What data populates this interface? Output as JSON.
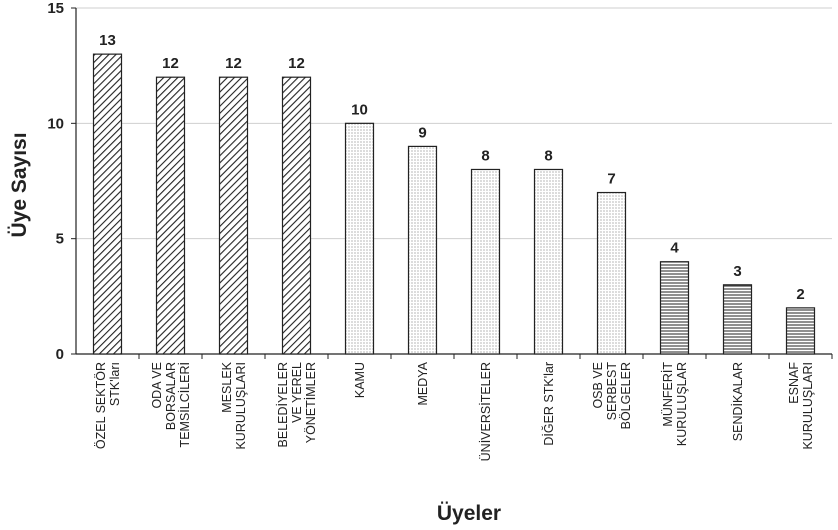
{
  "chart_data": {
    "type": "bar",
    "title": "",
    "xlabel": "Üyeler",
    "ylabel": "Üye Sayısı",
    "ylim": [
      0,
      15
    ],
    "yticks": [
      0,
      5,
      10,
      15
    ],
    "grid": true,
    "categories": [
      [
        "ÖZEL SEKTÖR",
        "STK'ları"
      ],
      [
        "ODA VE",
        "BORSALAR",
        "TEMSİLCİLERİ"
      ],
      [
        "MESLEK",
        "KURULUŞLARI"
      ],
      [
        "BELEDİYELER",
        "VE YEREL",
        "YÖNETİMLER"
      ],
      [
        "KAMU"
      ],
      [
        "MEDYA"
      ],
      [
        "ÜNİVERSİTELER"
      ],
      [
        "DİĞER STK'lar"
      ],
      [
        "OSB VE",
        "SERBEST",
        "BÖLGELER"
      ],
      [
        "MÜNFERİT",
        "KURULUŞLAR"
      ],
      [
        "SENDİKALAR"
      ],
      [
        "ESNAF",
        "KURULUŞLARI"
      ]
    ],
    "values": [
      13,
      12,
      12,
      12,
      10,
      9,
      8,
      8,
      7,
      4,
      3,
      2
    ],
    "patterns": [
      "diagonal",
      "diagonal",
      "diagonal",
      "diagonal",
      "dotted",
      "dotted",
      "dotted",
      "dotted",
      "dotted",
      "horizontal",
      "horizontal",
      "horizontal"
    ],
    "colors": {
      "bar_stroke": "#222222",
      "grid": "#cfcfcf",
      "axis": "#222222"
    }
  }
}
